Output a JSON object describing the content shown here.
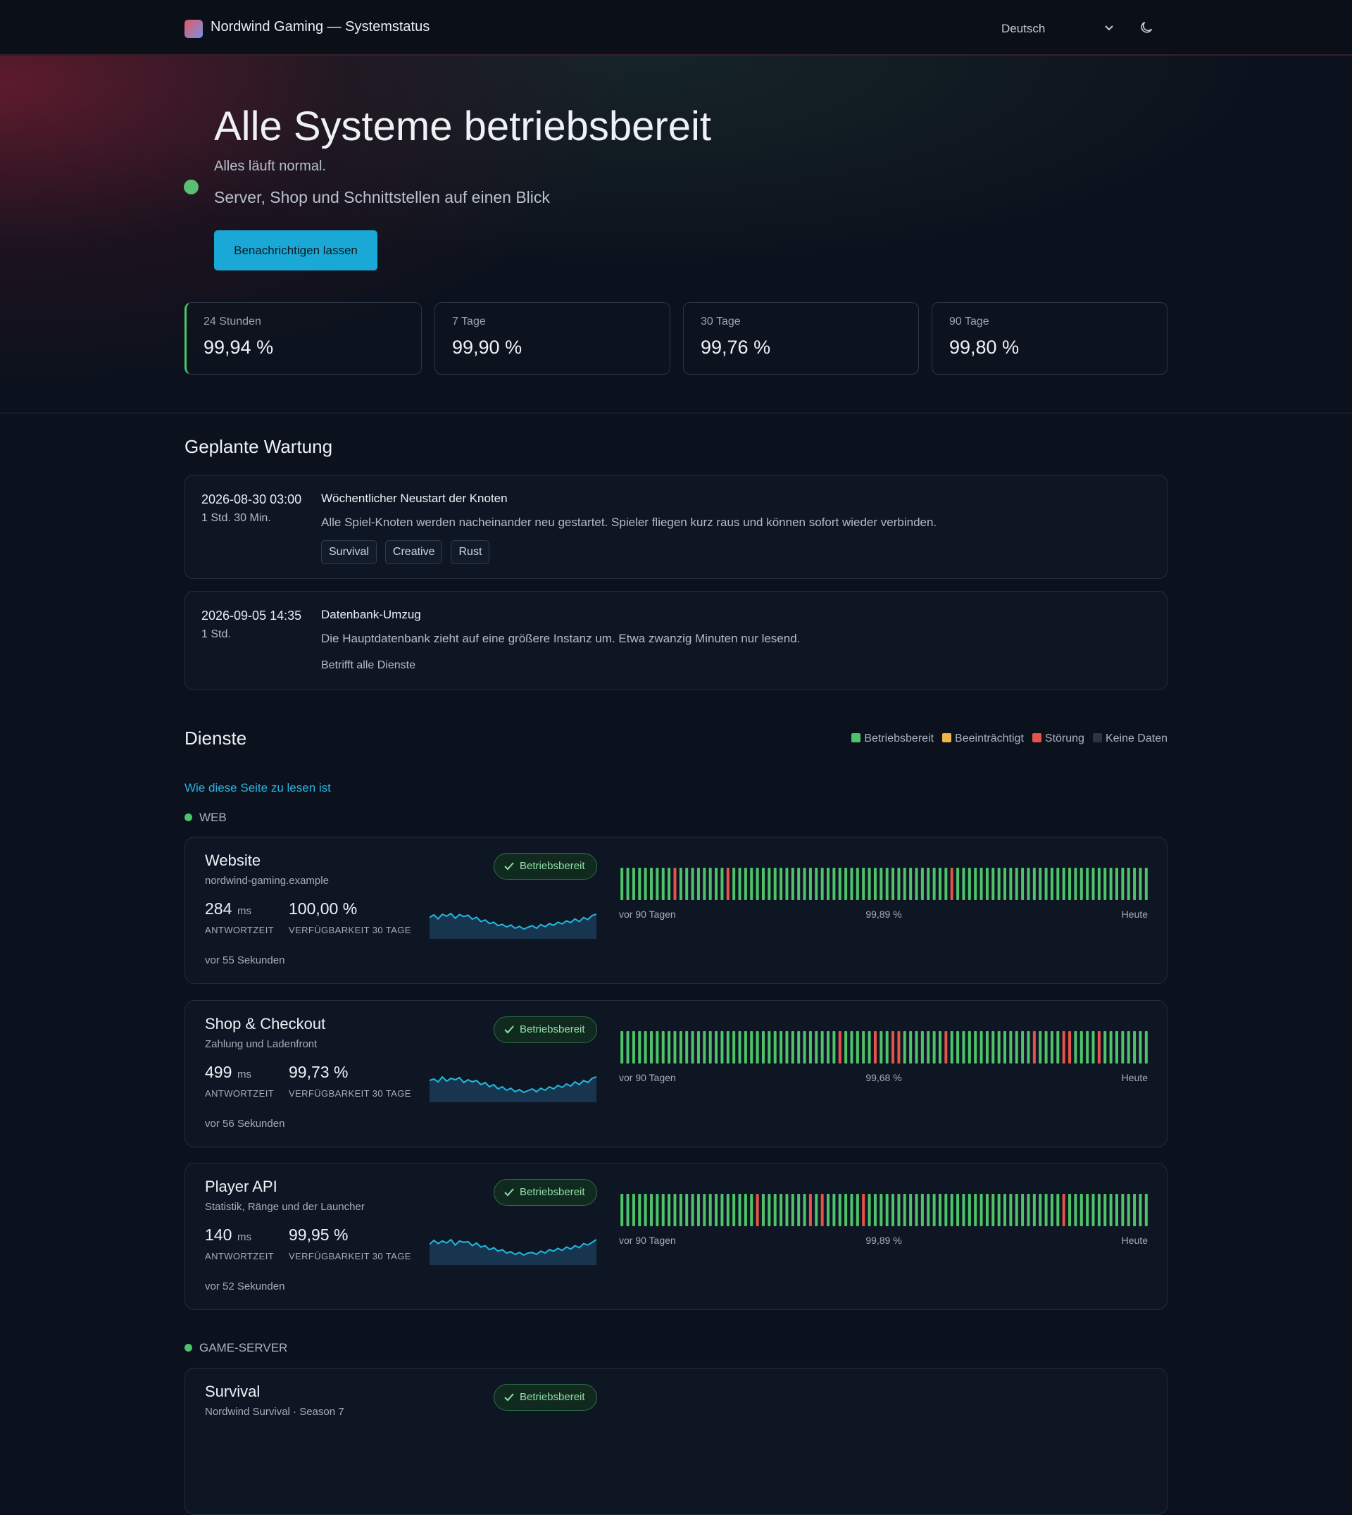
{
  "header": {
    "brand": "Nordwind Gaming — Systemstatus",
    "language": "Deutsch"
  },
  "hero": {
    "title": "Alle Systeme betriebsbereit",
    "subtitle": "Alles läuft normal.",
    "tagline": "Server, Shop und Schnittstellen auf einen Blick",
    "button": "Benachrichtigen lassen"
  },
  "uptime": [
    {
      "period": "24 Stunden",
      "value": "99,94 %"
    },
    {
      "period": "7 Tage",
      "value": "99,90 %"
    },
    {
      "period": "30 Tage",
      "value": "99,76 %"
    },
    {
      "period": "90 Tage",
      "value": "99,80 %"
    }
  ],
  "maintenance": {
    "title": "Geplante Wartung",
    "items": [
      {
        "date": "2026-08-30 03:00",
        "duration": "1 Std. 30 Min.",
        "title": "Wöchentlicher Neustart der Knoten",
        "description": "Alle Spiel-Knoten werden nacheinander neu gestartet. Spieler fliegen kurz raus und können sofort wieder verbinden.",
        "tags": [
          "Survival",
          "Creative",
          "Rust"
        ]
      },
      {
        "date": "2026-09-05 14:35",
        "duration": "1 Std.",
        "title": "Datenbank-Umzug",
        "description": "Die Hauptdatenbank zieht auf eine größere Instanz um. Etwa zwanzig Minuten nur lesend.",
        "affects": "Betrifft alle Dienste"
      }
    ]
  },
  "services": {
    "title": "Dienste",
    "legend": [
      {
        "label": "Betriebsbereit",
        "color": "#4ec36a"
      },
      {
        "label": "Beeinträchtigt",
        "color": "#f0b34a"
      },
      {
        "label": "Störung",
        "color": "#e5534b"
      },
      {
        "label": "Keine Daten",
        "color": "#2e3440"
      }
    ],
    "help_link": "Wie diese Seite zu lesen ist",
    "groups": [
      {
        "name": "WEB",
        "items": [
          {
            "name": "Website",
            "subtitle": "nordwind-gaming.example",
            "response": "284",
            "response_unit": "ms",
            "response_label": "ANTWORTZEIT",
            "availability": "100,00 %",
            "availability_label": "VERFÜGBARKEIT 30 TAGE",
            "checked": "vor 55 Sekunden",
            "status": "Betriebsbereit",
            "range_start": "vor 90 Tagen",
            "range_uptime": "99,89 %",
            "range_end": "Heute",
            "days": [
              1,
              1,
              1,
              1,
              1,
              1,
              1,
              1,
              1,
              0,
              1,
              1,
              1,
              1,
              1,
              1,
              1,
              1,
              0,
              1,
              1,
              1,
              1,
              1,
              1,
              1,
              1,
              1,
              1,
              1,
              1,
              1,
              1,
              1,
              1,
              1,
              1,
              1,
              1,
              1,
              1,
              1,
              1,
              1,
              1,
              1,
              1,
              1,
              1,
              1,
              1,
              1,
              1,
              1,
              1,
              1,
              0,
              1,
              1,
              1,
              1,
              1,
              1,
              1,
              1,
              1,
              1,
              1,
              1,
              1,
              1,
              1,
              1,
              1,
              1,
              1,
              1,
              1,
              1,
              1,
              1,
              1,
              1,
              1,
              1,
              1,
              1,
              1,
              1,
              1
            ],
            "spark": [
              62,
              70,
              58,
              72,
              66,
              74,
              60,
              71,
              65,
              69,
              57,
              63,
              50,
              55,
              44,
              48,
              38,
              42,
              34,
              40,
              30,
              36,
              28,
              33,
              38,
              30,
              41,
              35,
              44,
              39,
              48,
              43,
              52,
              47,
              58,
              50,
              62,
              56,
              68,
              72
            ]
          },
          {
            "name": "Shop & Checkout",
            "subtitle": "Zahlung und Ladenfront",
            "response": "499",
            "response_unit": "ms",
            "response_label": "ANTWORTZEIT",
            "availability": "99,73 %",
            "availability_label": "VERFÜGBARKEIT 30 TAGE",
            "checked": "vor 56 Sekunden",
            "status": "Betriebsbereit",
            "range_start": "vor 90 Tagen",
            "range_uptime": "99,68 %",
            "range_end": "Heute",
            "days": [
              1,
              1,
              1,
              1,
              1,
              1,
              1,
              1,
              1,
              1,
              1,
              1,
              1,
              1,
              1,
              1,
              1,
              1,
              1,
              1,
              1,
              1,
              1,
              1,
              1,
              1,
              1,
              1,
              1,
              1,
              1,
              1,
              1,
              1,
              1,
              1,
              1,
              0,
              1,
              1,
              1,
              1,
              1,
              0,
              1,
              1,
              0,
              0,
              1,
              1,
              1,
              1,
              1,
              1,
              1,
              0,
              1,
              1,
              1,
              1,
              1,
              1,
              1,
              1,
              1,
              1,
              1,
              1,
              1,
              1,
              0,
              1,
              1,
              1,
              1,
              0,
              0,
              1,
              1,
              1,
              1,
              0,
              1,
              1,
              1,
              1,
              1,
              1,
              1,
              1
            ],
            "spark": [
              64,
              68,
              60,
              74,
              62,
              70,
              66,
              72,
              58,
              66,
              60,
              64,
              52,
              58,
              46,
              52,
              40,
              46,
              36,
              42,
              32,
              38,
              30,
              35,
              40,
              32,
              42,
              36,
              46,
              40,
              50,
              44,
              54,
              48,
              60,
              52,
              64,
              58,
              70,
              74
            ]
          },
          {
            "name": "Player API",
            "subtitle": "Statistik, Ränge und der Launcher",
            "response": "140",
            "response_unit": "ms",
            "response_label": "ANTWORTZEIT",
            "availability": "99,95 %",
            "availability_label": "VERFÜGBARKEIT 30 TAGE",
            "checked": "vor 52 Sekunden",
            "status": "Betriebsbereit",
            "range_start": "vor 90 Tagen",
            "range_uptime": "99,89 %",
            "range_end": "Heute",
            "days": [
              1,
              1,
              1,
              1,
              1,
              1,
              1,
              1,
              1,
              1,
              1,
              1,
              1,
              1,
              1,
              1,
              1,
              1,
              1,
              1,
              1,
              1,
              1,
              0,
              1,
              1,
              1,
              1,
              1,
              1,
              1,
              1,
              0,
              1,
              0,
              1,
              1,
              1,
              1,
              1,
              1,
              0,
              1,
              1,
              1,
              1,
              1,
              1,
              1,
              1,
              1,
              1,
              1,
              1,
              1,
              1,
              1,
              1,
              1,
              1,
              1,
              1,
              1,
              1,
              1,
              1,
              1,
              1,
              1,
              1,
              1,
              1,
              1,
              1,
              1,
              0,
              1,
              1,
              1,
              1,
              1,
              1,
              1,
              1,
              1,
              1,
              1,
              1,
              1,
              1
            ],
            "spark": [
              60,
              72,
              62,
              70,
              64,
              74,
              58,
              70,
              66,
              68,
              56,
              64,
              52,
              56,
              44,
              50,
              40,
              44,
              34,
              38,
              30,
              36,
              28,
              34,
              36,
              30,
              40,
              34,
              44,
              40,
              48,
              42,
              52,
              46,
              56,
              50,
              62,
              58,
              66,
              74
            ]
          }
        ]
      },
      {
        "name": "GAME-SERVER",
        "items": [
          {
            "name": "Survival",
            "subtitle": "Nordwind Survival · Season 7",
            "status": "Betriebsbereit"
          }
        ]
      }
    ]
  }
}
